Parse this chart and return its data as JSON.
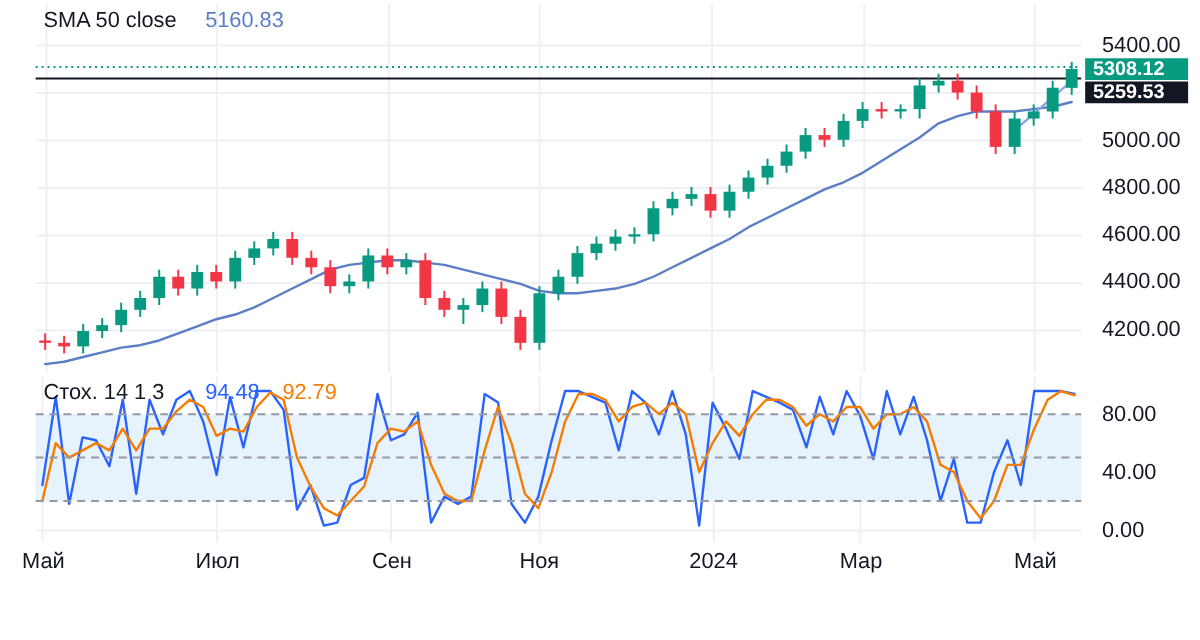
{
  "chart_data": [
    {
      "type": "candlestick",
      "title": "SMA 50 close",
      "annotations": [
        "5160.83"
      ],
      "categories": [
        null,
        null,
        null,
        null,
        null,
        null,
        null,
        null,
        null,
        null,
        null,
        null,
        null,
        null,
        null,
        null,
        null,
        null,
        null,
        null,
        null,
        null,
        null,
        null,
        null,
        null,
        null,
        null,
        null,
        null,
        null,
        null,
        null,
        null,
        null,
        null,
        null,
        null,
        null,
        null,
        null,
        null,
        null,
        null,
        null,
        null,
        null,
        null,
        null,
        null,
        null,
        null,
        null,
        null,
        null
      ],
      "ohlc": [
        [
          4150,
          4180,
          4110,
          4140
        ],
        [
          4140,
          4170,
          4095,
          4125
        ],
        [
          4125,
          4220,
          4095,
          4190
        ],
        [
          4190,
          4245,
          4160,
          4215
        ],
        [
          4215,
          4310,
          4185,
          4280
        ],
        [
          4280,
          4360,
          4250,
          4330
        ],
        [
          4330,
          4450,
          4300,
          4420
        ],
        [
          4420,
          4450,
          4340,
          4370
        ],
        [
          4370,
          4470,
          4340,
          4440
        ],
        [
          4440,
          4470,
          4370,
          4400
        ],
        [
          4400,
          4530,
          4370,
          4500
        ],
        [
          4500,
          4570,
          4470,
          4540
        ],
        [
          4540,
          4610,
          4510,
          4580
        ],
        [
          4580,
          4610,
          4470,
          4500
        ],
        [
          4500,
          4530,
          4430,
          4460
        ],
        [
          4460,
          4490,
          4350,
          4380
        ],
        [
          4380,
          4430,
          4350,
          4400
        ],
        [
          4400,
          4540,
          4370,
          4510
        ],
        [
          4510,
          4540,
          4430,
          4460
        ],
        [
          4460,
          4520,
          4430,
          4490
        ],
        [
          4490,
          4520,
          4300,
          4330
        ],
        [
          4330,
          4360,
          4250,
          4280
        ],
        [
          4280,
          4330,
          4220,
          4300
        ],
        [
          4300,
          4400,
          4270,
          4370
        ],
        [
          4370,
          4400,
          4220,
          4250
        ],
        [
          4250,
          4280,
          4110,
          4140
        ],
        [
          4140,
          4380,
          4110,
          4350
        ],
        [
          4350,
          4450,
          4320,
          4420
        ],
        [
          4420,
          4550,
          4390,
          4520
        ],
        [
          4520,
          4590,
          4490,
          4560
        ],
        [
          4560,
          4620,
          4530,
          4590
        ],
        [
          4590,
          4630,
          4560,
          4600
        ],
        [
          4600,
          4740,
          4570,
          4710
        ],
        [
          4710,
          4780,
          4680,
          4750
        ],
        [
          4750,
          4800,
          4720,
          4770
        ],
        [
          4770,
          4800,
          4670,
          4700
        ],
        [
          4700,
          4810,
          4670,
          4780
        ],
        [
          4780,
          4870,
          4750,
          4840
        ],
        [
          4840,
          4920,
          4810,
          4890
        ],
        [
          4890,
          4980,
          4860,
          4950
        ],
        [
          4950,
          5050,
          4920,
          5020
        ],
        [
          5020,
          5050,
          4970,
          5000
        ],
        [
          5000,
          5110,
          4970,
          5080
        ],
        [
          5080,
          5160,
          5050,
          5130
        ],
        [
          5130,
          5160,
          5090,
          5120
        ],
        [
          5120,
          5150,
          5090,
          5130
        ],
        [
          5130,
          5260,
          5090,
          5230
        ],
        [
          5230,
          5280,
          5200,
          5250
        ],
        [
          5250,
          5280,
          5170,
          5200
        ],
        [
          5200,
          5230,
          5090,
          5120
        ],
        [
          5120,
          5150,
          4940,
          4970
        ],
        [
          4970,
          5120,
          4940,
          5090
        ],
        [
          5090,
          5150,
          5060,
          5120
        ],
        [
          5120,
          5250,
          5090,
          5220
        ],
        [
          5220,
          5330,
          5190,
          5300
        ]
      ],
      "colors": [
        "#f23645",
        "#f23645",
        "#089981",
        "#089981",
        "#089981",
        "#089981",
        "#089981",
        "#f23645",
        "#089981",
        "#f23645",
        "#089981",
        "#089981",
        "#089981",
        "#f23645",
        "#f23645",
        "#f23645",
        "#089981",
        "#089981",
        "#f23645",
        "#089981",
        "#f23645",
        "#f23645",
        "#089981",
        "#089981",
        "#f23645",
        "#f23645",
        "#089981",
        "#089981",
        "#089981",
        "#089981",
        "#089981",
        "#089981",
        "#089981",
        "#089981",
        "#089981",
        "#f23645",
        "#089981",
        "#089981",
        "#089981",
        "#089981",
        "#089981",
        "#f23645",
        "#089981",
        "#089981",
        "#f23645",
        "#089981",
        "#089981",
        "#089981",
        "#f23645",
        "#f23645",
        "#f23645",
        "#089981",
        "#089981",
        "#089981",
        "#089981"
      ],
      "series": [
        {
          "type": "line",
          "color": "#5b7ec5",
          "values": [
            4050,
            4060,
            4080,
            4100,
            4120,
            4130,
            4150,
            4180,
            4210,
            4240,
            4260,
            4290,
            4330,
            4370,
            4410,
            4450,
            4470,
            4480,
            4490,
            4490,
            4480,
            4470,
            4450,
            4430,
            4410,
            4390,
            4360,
            4350,
            4350,
            4360,
            4370,
            4390,
            4420,
            4460,
            4500,
            4540,
            4580,
            4630,
            4670,
            4710,
            4750,
            4790,
            4820,
            4860,
            4910,
            4960,
            5010,
            5070,
            5100,
            5120,
            5120,
            5120,
            5130,
            5140,
            5160
          ]
        },
        {
          "type": "line",
          "color": "#8aa6e0",
          "values": [
            null,
            null,
            null,
            null,
            null,
            null,
            null,
            null,
            null,
            null,
            null,
            null,
            null,
            null,
            null,
            null,
            null,
            null,
            null,
            null,
            null,
            null,
            null,
            null,
            null,
            null,
            null,
            null,
            null,
            null,
            null,
            null,
            null,
            null,
            null,
            null,
            null,
            null,
            null,
            null,
            null,
            null,
            null,
            null,
            null,
            null,
            null,
            null,
            null,
            null,
            null,
            5040,
            5110,
            5180,
            5250
          ]
        }
      ],
      "ylim": [
        4020,
        5580
      ],
      "yticks": [
        {
          "value": 4200,
          "label": "4200.00"
        },
        {
          "value": 4400,
          "label": "4400.00"
        },
        {
          "value": 4600,
          "label": "4600.00"
        },
        {
          "value": 4800,
          "label": "4800.00"
        },
        {
          "value": 5000,
          "label": "5000.00"
        },
        {
          "value": 5200,
          "label": null
        },
        {
          "value": 5400,
          "label": "5400.00"
        }
      ],
      "ref_lines": [
        {
          "axis": "y",
          "value": 5308.12,
          "label": "5308.12",
          "color": "#089981",
          "line_style": "dotted"
        },
        {
          "axis": "y",
          "value": 5259.53,
          "label": "5259.53",
          "color": "#131722",
          "line_style": "solid"
        }
      ],
      "grid": true,
      "tick_labels": "y"
    },
    {
      "type": "line",
      "title": "Стох. 14 1 3",
      "annotations": [
        "94.48",
        "92.79"
      ],
      "categories": [
        "Май",
        null,
        null,
        null,
        null,
        null,
        null,
        null,
        null,
        null,
        null,
        null,
        null,
        "Июл",
        null,
        null,
        null,
        null,
        null,
        null,
        null,
        null,
        null,
        null,
        null,
        null,
        "Сен",
        null,
        null,
        null,
        null,
        null,
        null,
        null,
        null,
        null,
        null,
        "Ноя",
        null,
        null,
        null,
        null,
        null,
        null,
        null,
        null,
        null,
        null,
        null,
        null,
        "2024",
        null,
        null,
        null,
        null,
        null,
        null,
        null,
        null,
        null,
        null,
        "Мар",
        null,
        null,
        null,
        null,
        null,
        null,
        null,
        null,
        null,
        null,
        null,
        null,
        "Май",
        null,
        null,
        null
      ],
      "series": [
        {
          "color": "#2962ff",
          "values": [
            31,
            92,
            18,
            64,
            62,
            44,
            90,
            25,
            90,
            66,
            90,
            96,
            75,
            38,
            92,
            57,
            96,
            96,
            83,
            14,
            31,
            3,
            5,
            31,
            36,
            94,
            62,
            66,
            81,
            5,
            23,
            18,
            23,
            94,
            88,
            18,
            5,
            23,
            62,
            96,
            96,
            92,
            88,
            55,
            96,
            88,
            66,
            96,
            66,
            3,
            88,
            70,
            49,
            96,
            92,
            88,
            83,
            57,
            92,
            66,
            96,
            79,
            49,
            96,
            66,
            92,
            62,
            20,
            49,
            5,
            5,
            40,
            62,
            31,
            96,
            96,
            96,
            94
          ]
        },
        {
          "color": "#f57c00",
          "values": [
            20,
            60,
            50,
            55,
            60,
            55,
            70,
            55,
            70,
            70,
            82,
            90,
            85,
            65,
            70,
            68,
            85,
            95,
            90,
            50,
            30,
            15,
            10,
            20,
            30,
            60,
            70,
            68,
            75,
            45,
            25,
            20,
            20,
            55,
            85,
            60,
            25,
            15,
            40,
            75,
            94,
            94,
            90,
            75,
            85,
            88,
            80,
            88,
            80,
            40,
            60,
            75,
            65,
            80,
            90,
            90,
            85,
            72,
            80,
            75,
            85,
            85,
            70,
            80,
            80,
            85,
            75,
            45,
            40,
            20,
            8,
            20,
            45,
            45,
            70,
            90,
            96,
            93
          ]
        }
      ],
      "ylim": [
        -8,
        107
      ],
      "yticks": [
        {
          "value": 0,
          "label": "0.00"
        },
        {
          "value": 40,
          "label": "40.00"
        },
        {
          "value": 80,
          "label": "80.00"
        }
      ],
      "bands": [
        {
          "axis": "y",
          "from": 20,
          "to": 80,
          "color": "#e6f2fc"
        }
      ],
      "ref_lines": [
        {
          "axis": "y",
          "value": 80,
          "color": "#9598a1",
          "line_style": "dashed"
        },
        {
          "axis": "y",
          "value": 50,
          "color": "#9598a1",
          "line_style": "dashed"
        },
        {
          "axis": "y",
          "value": 20,
          "color": "#9598a1",
          "line_style": "dashed"
        }
      ],
      "grid": true
    }
  ]
}
